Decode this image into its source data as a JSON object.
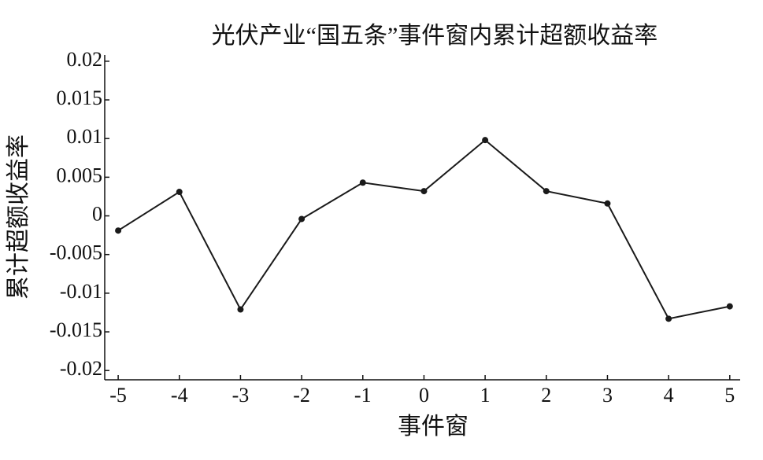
{
  "chart_data": {
    "type": "line",
    "title": "光伏产业“国五条”事件窗内累计超额收益率",
    "x_label": "事件窗",
    "y_label": "累计超额收益率",
    "x": [
      -5,
      -4,
      -3,
      -2,
      -1,
      0,
      1,
      2,
      3,
      4,
      5
    ],
    "series": [
      {
        "name": "累计超额收益率",
        "color": "#1a1a1a",
        "values": [
          -0.0019,
          0.0031,
          -0.0121,
          -0.0004,
          0.0043,
          0.0032,
          0.0098,
          0.0032,
          0.0016,
          -0.0133,
          -0.0117
        ]
      }
    ],
    "xlim": [
      -5.22,
      5.17
    ],
    "xticks": [
      -5,
      -4,
      -3,
      -2,
      -1,
      0,
      1,
      2,
      3,
      4,
      5
    ],
    "ylim": [
      -0.0212,
      0.0208
    ],
    "yticks": [
      0.02,
      0.015,
      0.01,
      0.005,
      0,
      -0.005,
      -0.01,
      -0.015,
      -0.02
    ],
    "grid": false,
    "legend": false
  }
}
